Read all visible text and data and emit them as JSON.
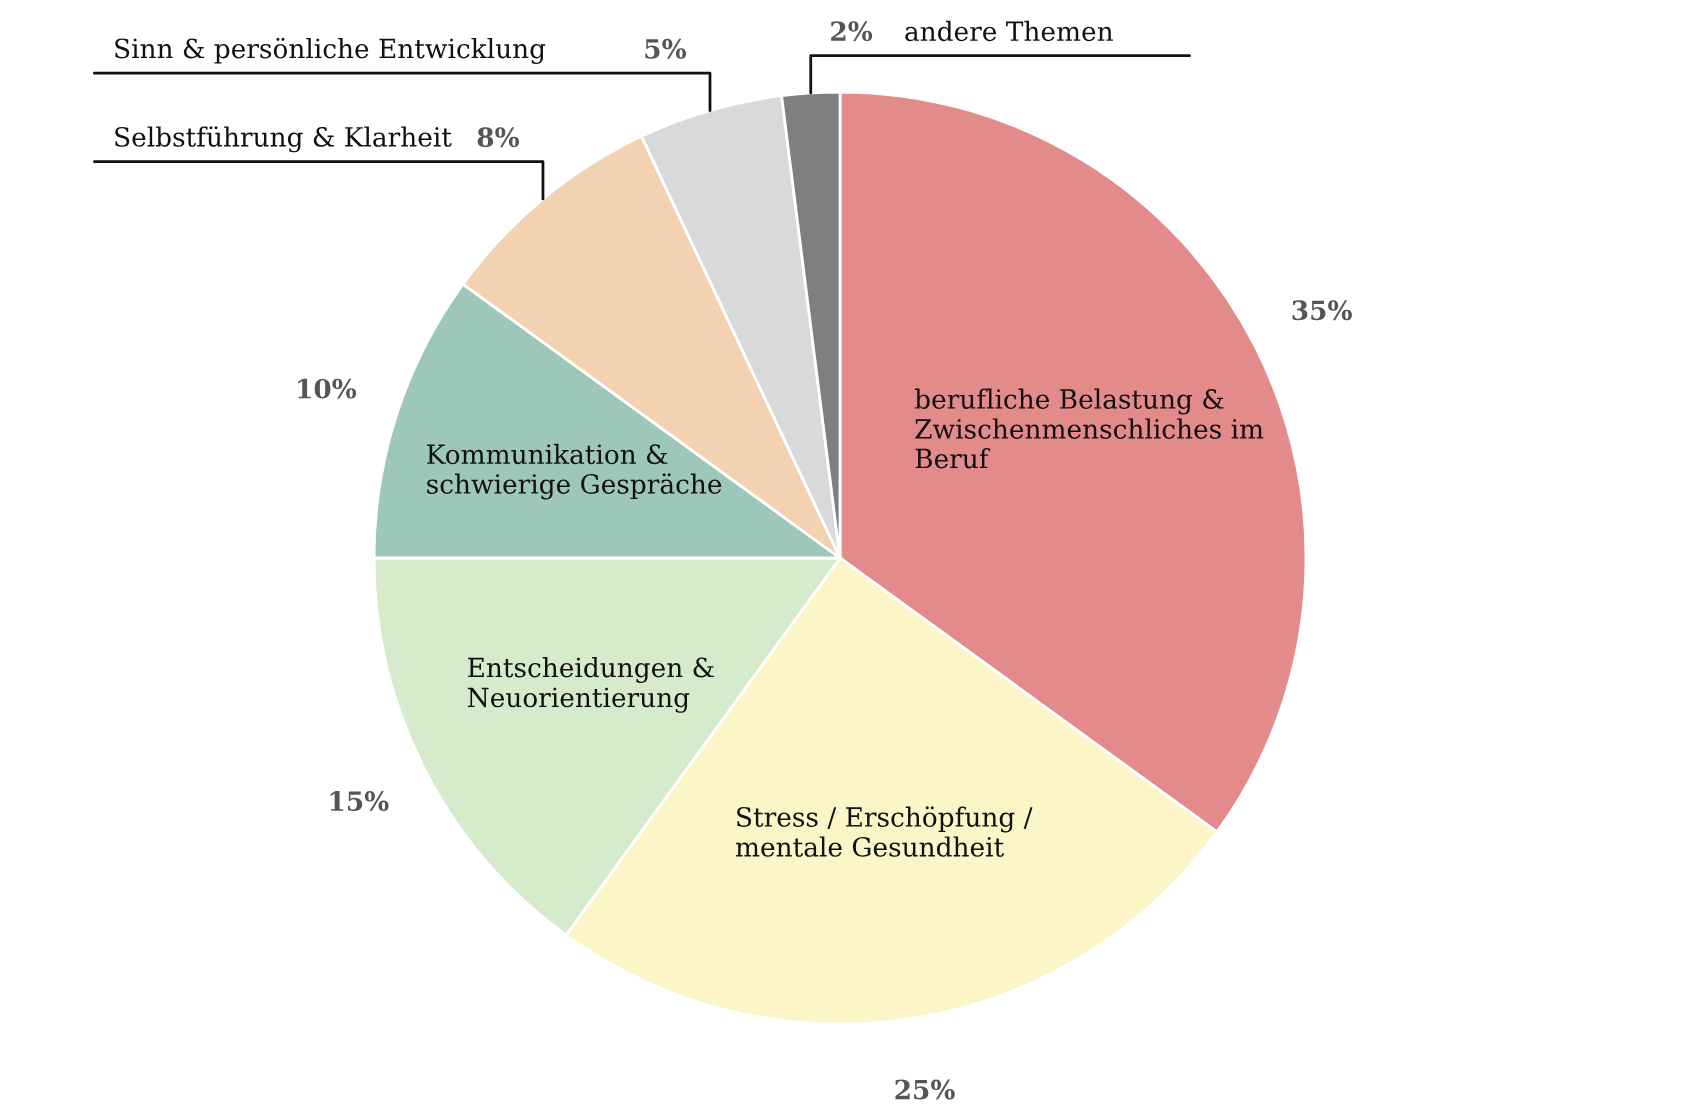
{
  "chart_data": {
    "type": "pie",
    "categories": [
      "berufliche Belastung &\nZwischenmenschliches im\nBeruf",
      "Stress / Erschöpfung /\nmentale Gesundheit",
      "Entscheidungen &\nNeuorientierung",
      "Kommunikation &\nschwierige Gespräche",
      "Selbstführung & Klarheit",
      "Sinn & persönliche Entwicklung",
      "andere Themen"
    ],
    "values": [
      35,
      25,
      15,
      10,
      8,
      5,
      2
    ],
    "value_labels": [
      "35%",
      "25%",
      "15%",
      "10%",
      "8%",
      "5%",
      "2%"
    ],
    "colors": [
      "#e38a8a",
      "#fbf5c8",
      "#d6eacc",
      "#9cc7b9",
      "#f3d2b2",
      "#d9d9d9",
      "#7f7f7f"
    ]
  }
}
